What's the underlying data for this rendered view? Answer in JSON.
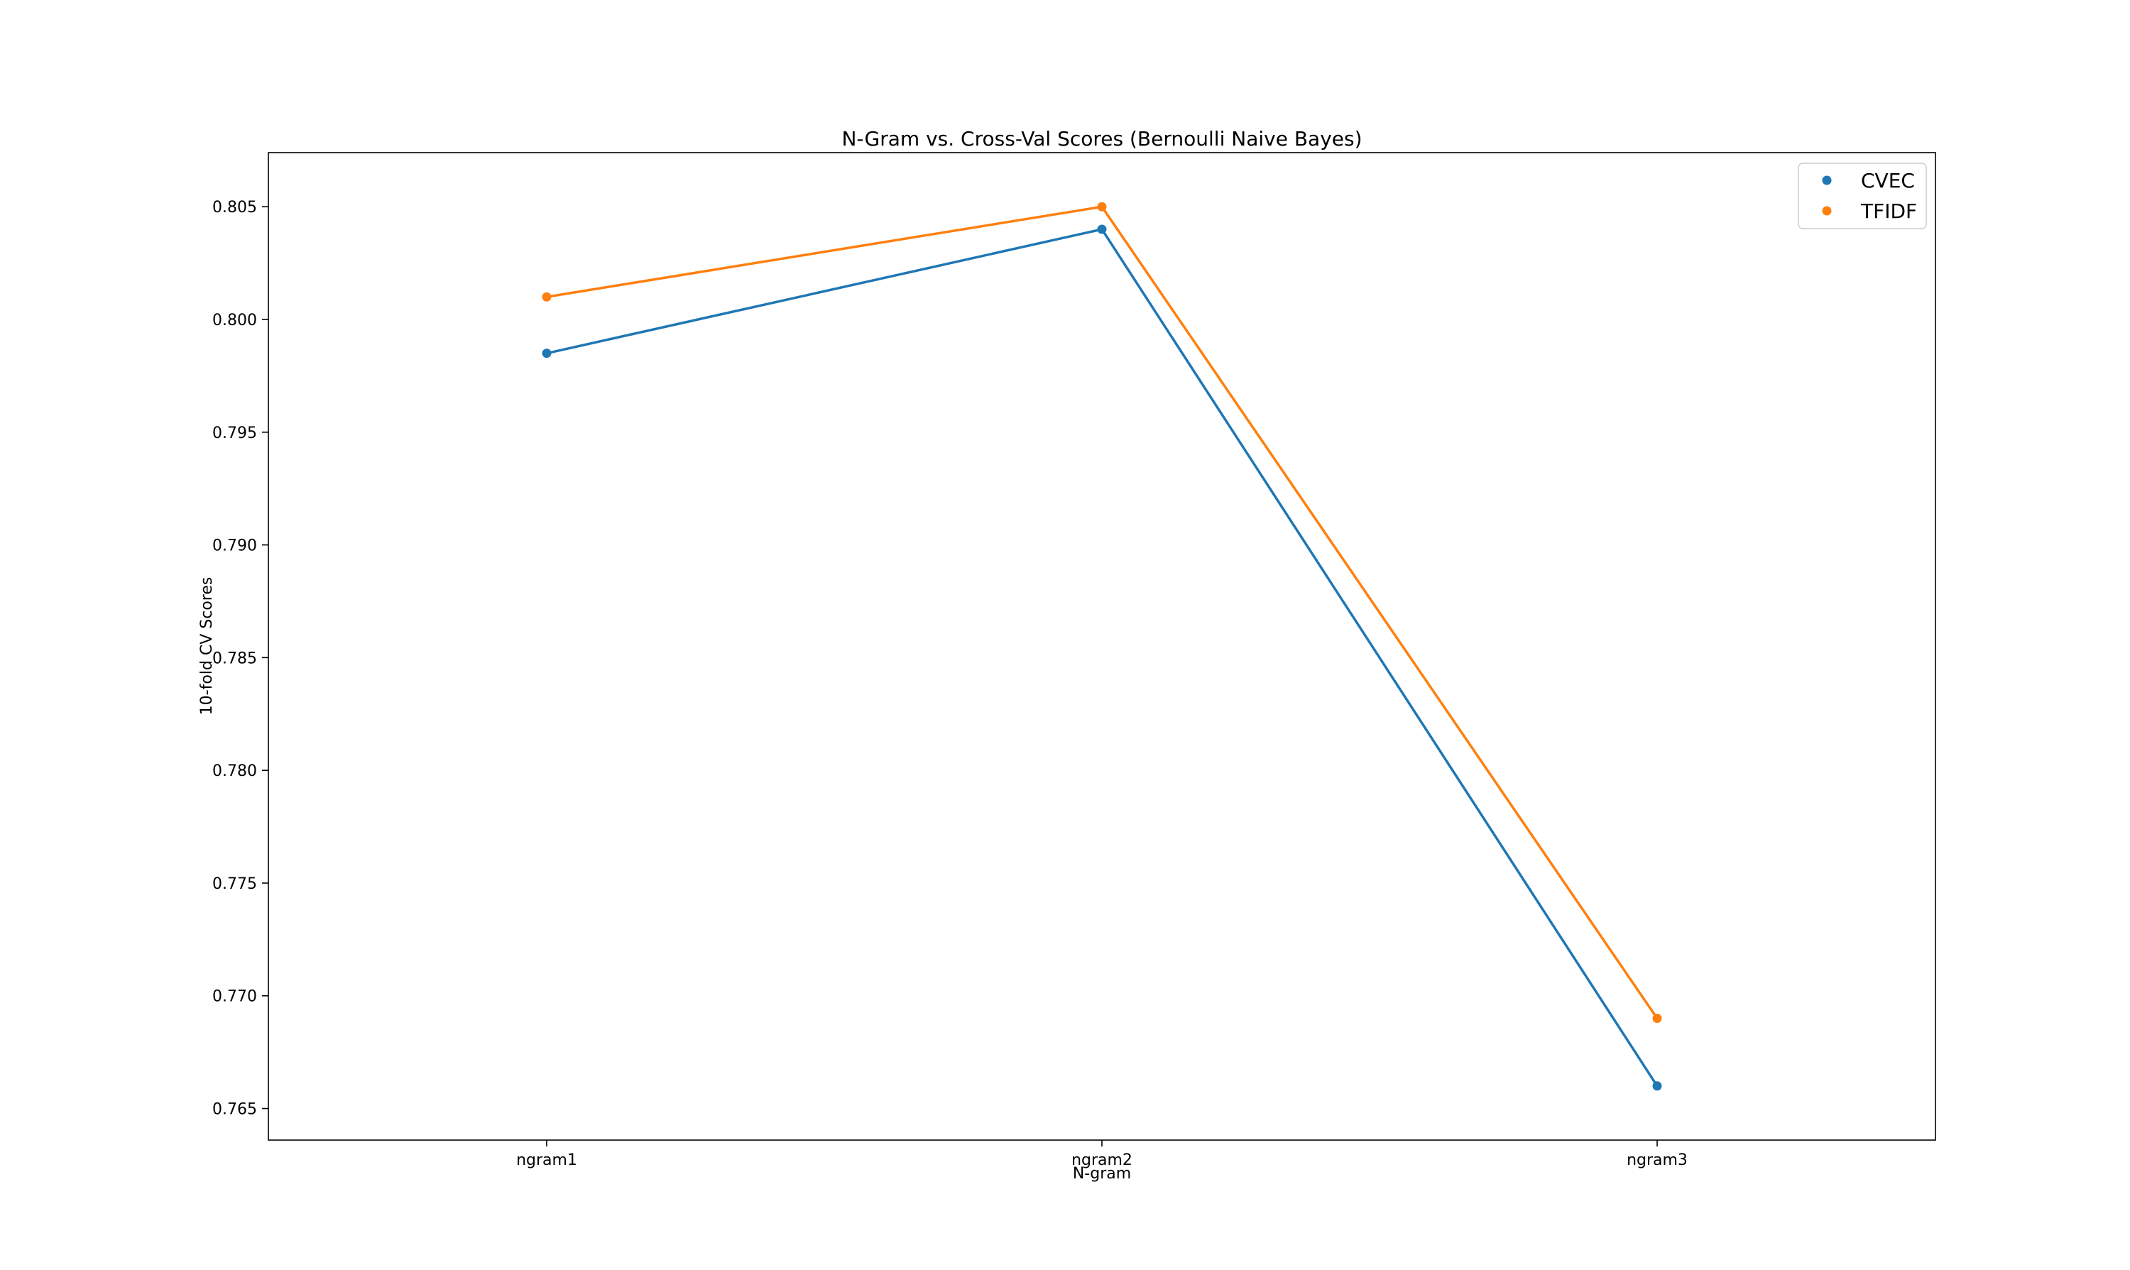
{
  "chart_data": {
    "type": "line",
    "title": "N-Gram vs. Cross-Val Scores (Bernoulli Naive Bayes)",
    "xlabel": "N-gram",
    "ylabel": "10-fold CV Scores",
    "categories": [
      "ngram1",
      "ngram2",
      "ngram3"
    ],
    "ylim": [
      0.7636,
      0.8074
    ],
    "yticks": [
      "0.765",
      "0.770",
      "0.775",
      "0.780",
      "0.785",
      "0.790",
      "0.795",
      "0.800",
      "0.805"
    ],
    "ytick_values": [
      0.765,
      0.77,
      0.775,
      0.78,
      0.785,
      0.79,
      0.795,
      0.8,
      0.805
    ],
    "grid": false,
    "legend_position": "top-right",
    "series": [
      {
        "name": "CVEC",
        "color": "#1f77b4",
        "values": [
          0.7985,
          0.804,
          0.766
        ]
      },
      {
        "name": "TFIDF",
        "color": "#ff7f0e",
        "values": [
          0.801,
          0.805,
          0.769
        ]
      }
    ]
  }
}
